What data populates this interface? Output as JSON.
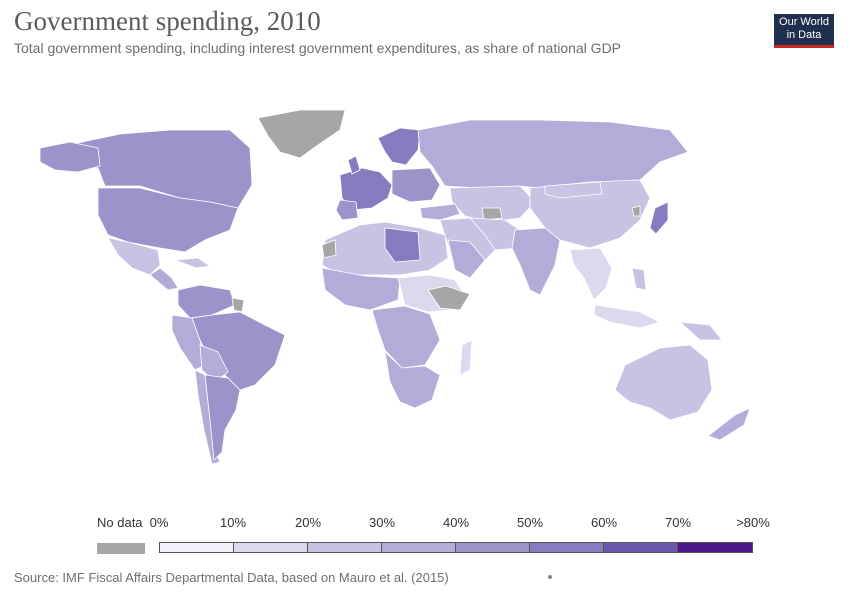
{
  "header": {
    "title": "Government spending, 2010",
    "subtitle": "Total government spending, including interest government expenditures, as share of national GDP"
  },
  "logo": {
    "line1": "Our World",
    "line2": "in Data"
  },
  "legend": {
    "no_data_label": "No data",
    "no_data_color": "#a6a6a6",
    "ticks": [
      "0%",
      "10%",
      "20%",
      "30%",
      "40%",
      "50%",
      "60%",
      "70%",
      ">80%"
    ],
    "bin_colors": [
      "#f1eff8",
      "#dcd9ee",
      "#c6c3e3",
      "#b1acd8",
      "#9b94cb",
      "#857cbf",
      "#6a57ae",
      "#4b1787"
    ]
  },
  "map_colors": {
    "ocean": "#ffffff",
    "no_data": "#a6a6a6",
    "border": "#ffffff"
  },
  "footer": {
    "source": "Source: IMF Fiscal Affairs Departmental Data, based on Mauro et al. (2015)"
  }
}
